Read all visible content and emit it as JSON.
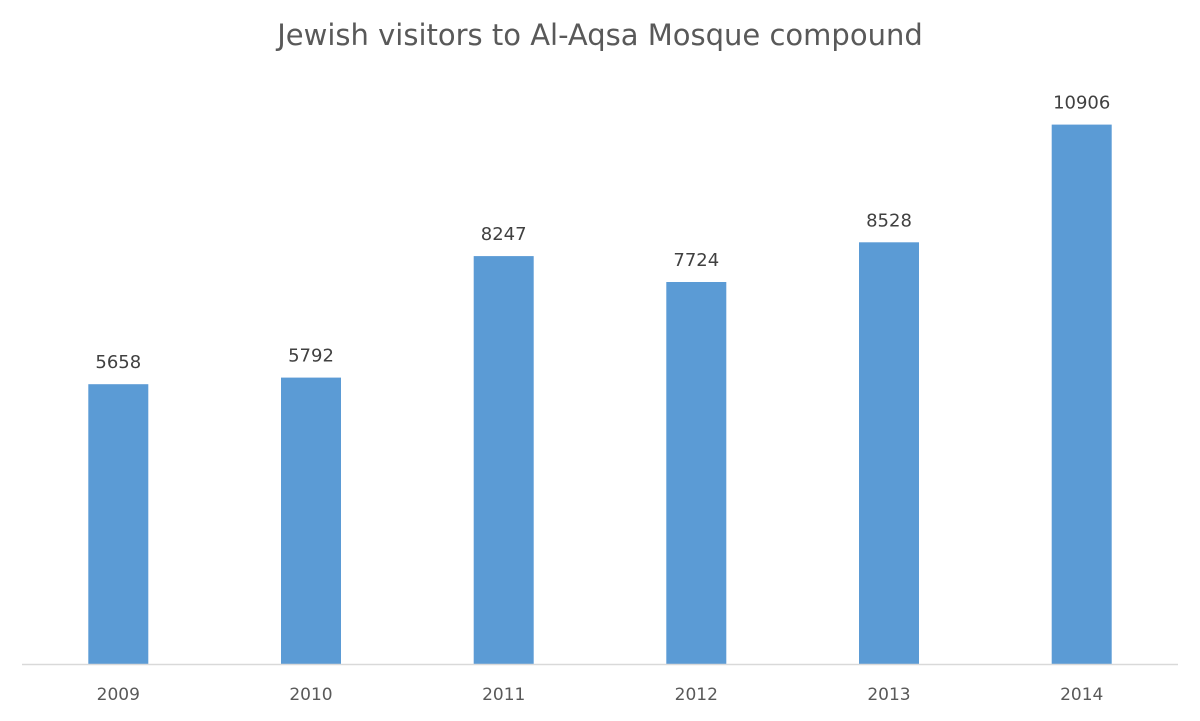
{
  "chart_data": {
    "type": "bar",
    "title": "Jewish visitors to Al-Aqsa Mosque compound",
    "categories": [
      "2009",
      "2010",
      "2011",
      "2012",
      "2013",
      "2014"
    ],
    "series": [
      {
        "values": [
          5658,
          5792,
          8247,
          7724,
          8528,
          10906
        ],
        "color": "#5B9BD5"
      }
    ],
    "data_labels": true,
    "ylim": [
      0,
      11000
    ],
    "grid": false,
    "y_axis_visible": false,
    "xlabel": "",
    "ylabel": ""
  }
}
